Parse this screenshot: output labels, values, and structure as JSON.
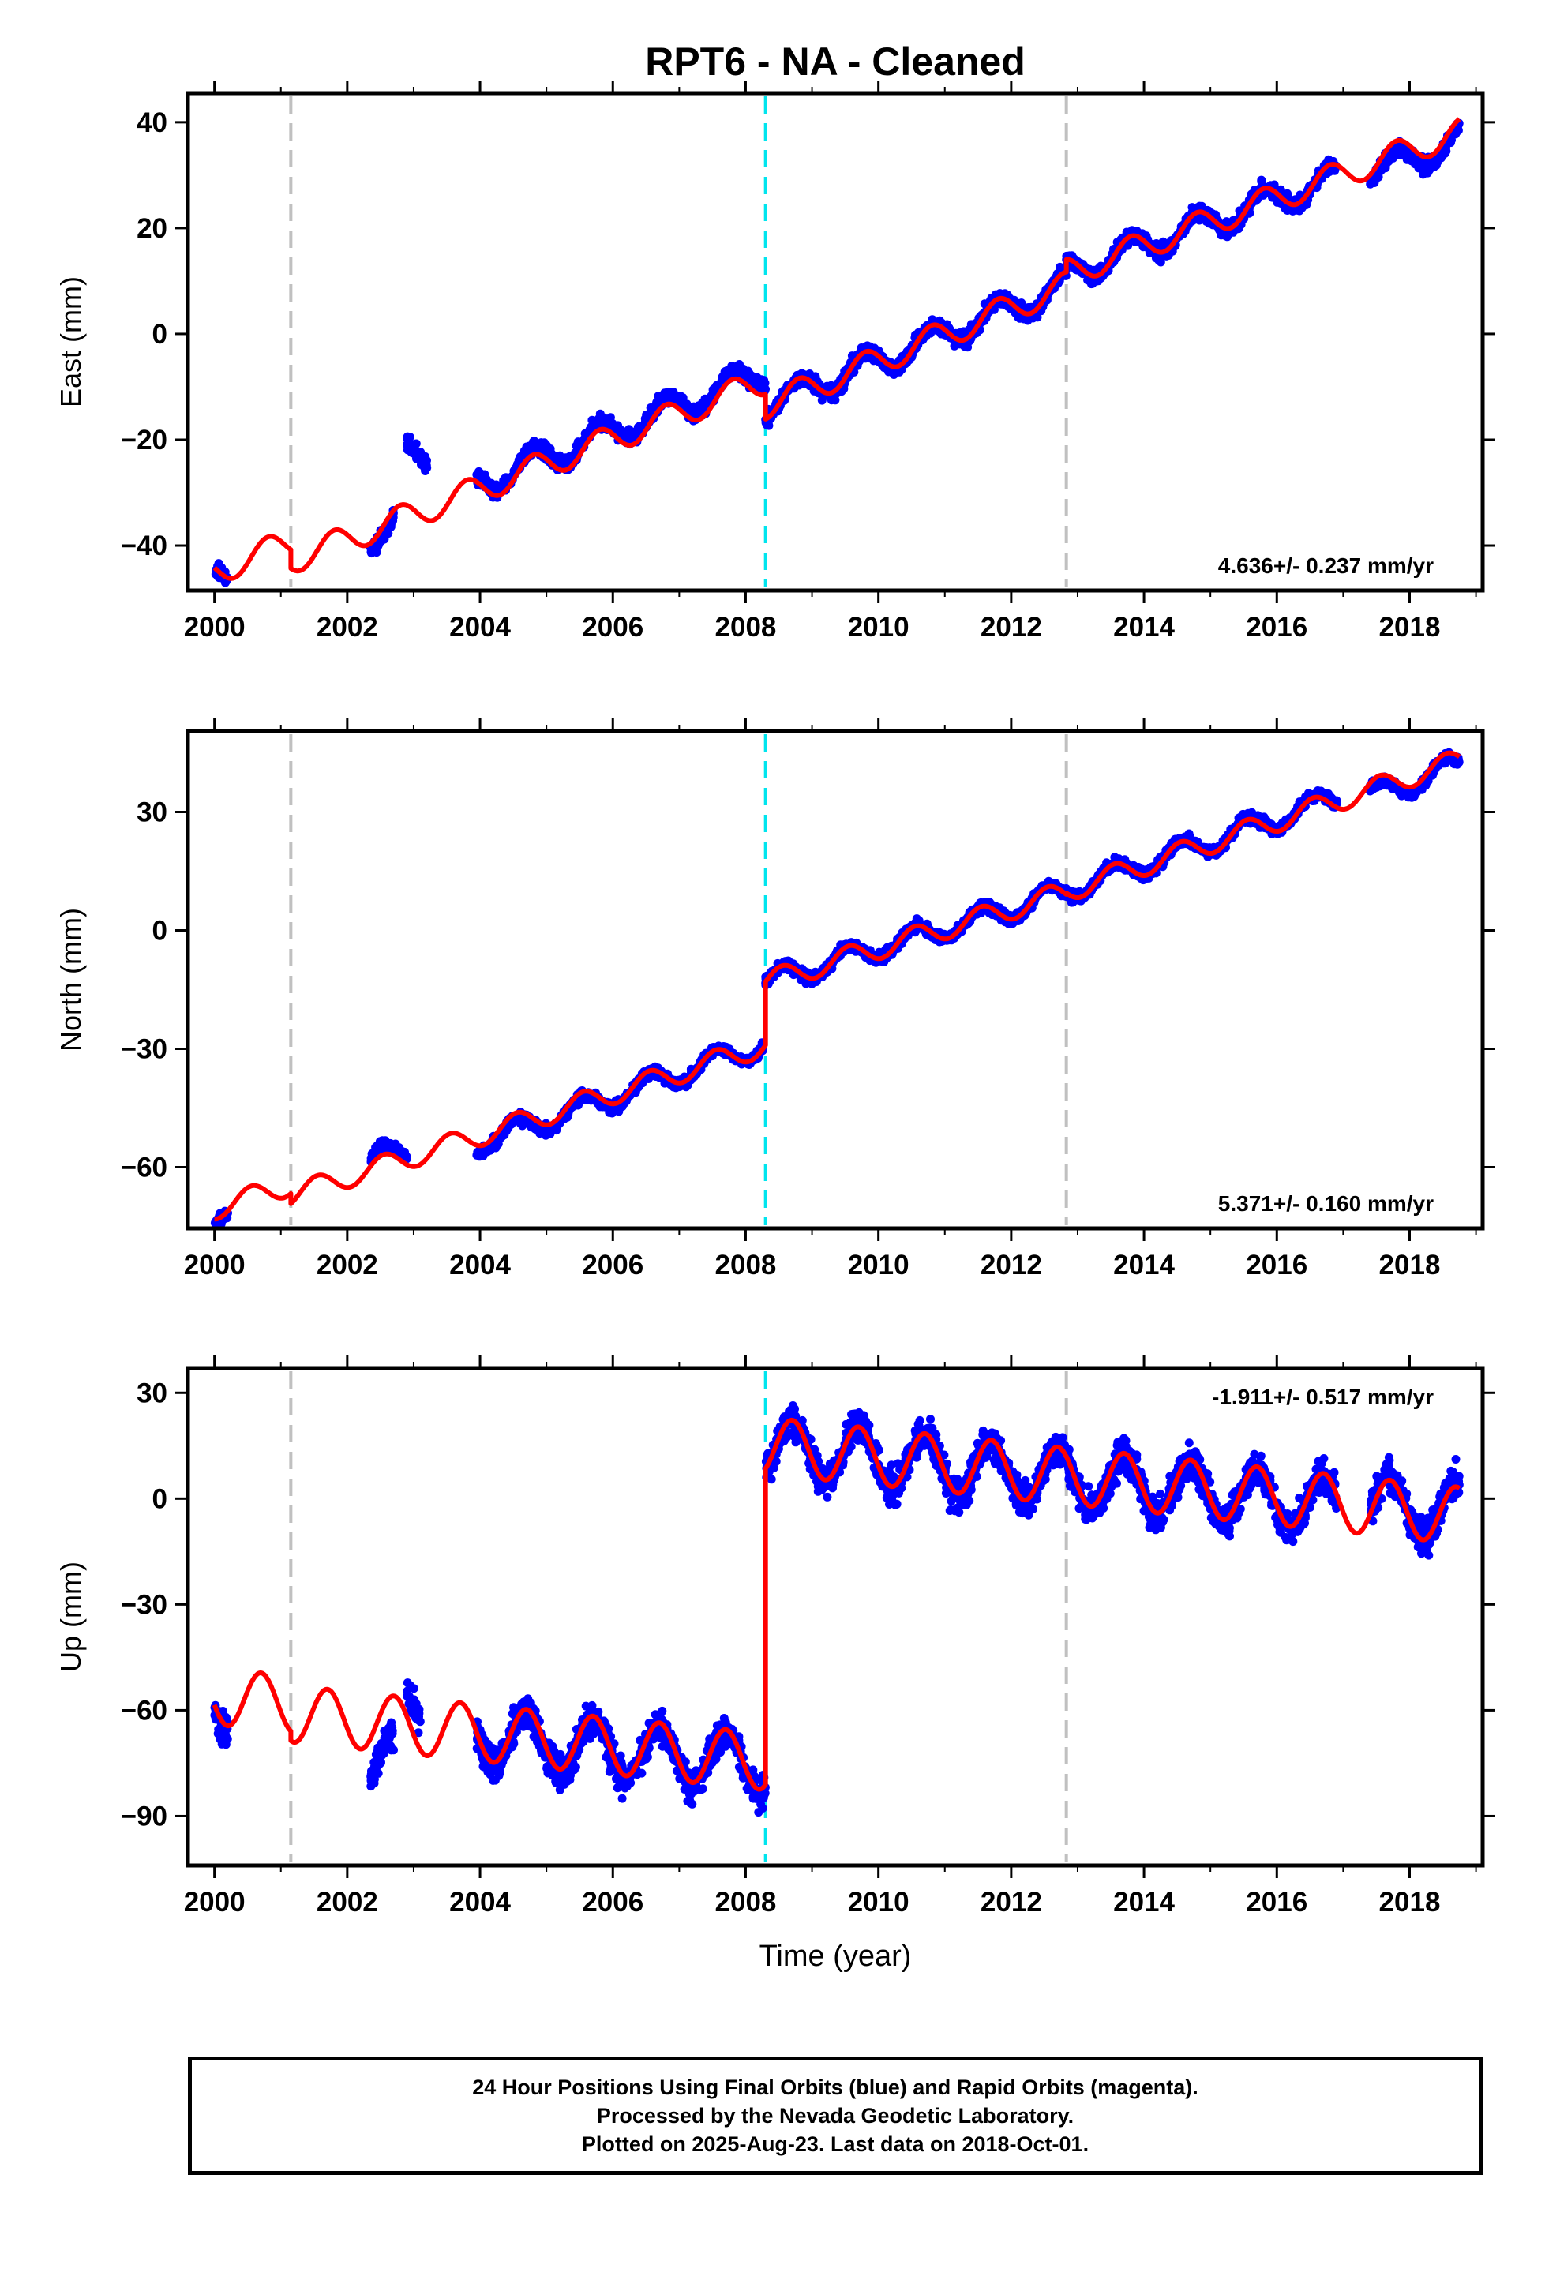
{
  "title": "RPT6  - NA - Cleaned",
  "xlabel": "Time (year)",
  "footer": {
    "line1": "24 Hour Positions Using Final Orbits (blue) and Rapid Orbits (magenta).",
    "line2": "Processed by the Nevada Geodetic Laboratory.",
    "line3": "Plotted on 2025-Aug-23. Last data on 2018-Oct-01."
  },
  "colors": {
    "data": "#0000ff",
    "model": "#ff0000",
    "offset_equipment": "#c0c0c0",
    "offset_earthquake": "#00e5ee"
  },
  "chart_data": [
    {
      "type": "scatter",
      "component": "east",
      "ylabel": "East (mm)",
      "rate_label": "4.636+/- 0.237 mm/yr",
      "rate_position": "bottom-right",
      "xlim": [
        1999.6,
        2019.1
      ],
      "ylim": [
        -48.5,
        45.5
      ],
      "xticks": [
        "2000",
        "2002",
        "2004",
        "2006",
        "2008",
        "2010",
        "2012",
        "2014",
        "2016",
        "2018"
      ],
      "yticks": [
        "40",
        "20",
        "0",
        "-20",
        "-40"
      ],
      "ytick_values": [
        40,
        20,
        0,
        -20,
        -40
      ],
      "grid": false,
      "vlines": [
        {
          "x": 2001.15,
          "kind": "equipment"
        },
        {
          "x": 2008.3,
          "kind": "earthquake"
        },
        {
          "x": 2012.83,
          "kind": "equipment"
        }
      ],
      "segments": [
        {
          "start": 2000.0,
          "end": 2000.2,
          "y0": -45.0,
          "rate": 5.0
        },
        {
          "start": 2002.35,
          "end": 2002.7,
          "y0": -38.5,
          "rate": 4.6
        },
        {
          "start": 2002.9,
          "end": 2003.2,
          "y0": -22.5,
          "rate": 0.0
        },
        {
          "start": 2003.95,
          "end": 2008.3,
          "y0": -28.5,
          "rate": 4.9
        },
        {
          "start": 2008.3,
          "end": 2012.83,
          "y0": -13.5,
          "rate": 5.0
        },
        {
          "start": 2012.83,
          "end": 2016.9,
          "y0": 11.5,
          "rate": 4.45
        },
        {
          "start": 2017.4,
          "end": 2018.75,
          "y0": 30.5,
          "rate": 4.5
        }
      ],
      "model_segments": [
        {
          "start": 2000.0,
          "end": 2001.15,
          "y0": -45.0,
          "rate": 5.0
        },
        {
          "start": 2001.15,
          "end": 2008.3,
          "y0": -42.8,
          "rate": 4.75
        },
        {
          "start": 2008.3,
          "end": 2012.83,
          "y0": -13.5,
          "rate": 5.0
        },
        {
          "start": 2012.83,
          "end": 2018.75,
          "y0": 11.5,
          "rate": 4.5
        }
      ],
      "seasonal_amplitude": 2.6,
      "seasonal_phase": 0.55
    },
    {
      "type": "scatter",
      "component": "north",
      "ylabel": "North (mm)",
      "rate_label": "5.371+/- 0.160 mm/yr",
      "rate_position": "bottom-right",
      "xlim": [
        1999.6,
        2019.1
      ],
      "ylim": [
        -75.5,
        50.5
      ],
      "xticks": [
        "2000",
        "2002",
        "2004",
        "2006",
        "2008",
        "2010",
        "2012",
        "2014",
        "2016",
        "2018"
      ],
      "yticks": [
        "30",
        "0",
        "-30",
        "-60"
      ],
      "ytick_values": [
        30,
        0,
        -30,
        -60
      ],
      "grid": false,
      "vlines": [
        {
          "x": 2001.15,
          "kind": "equipment"
        },
        {
          "x": 2008.3,
          "kind": "earthquake"
        },
        {
          "x": 2012.83,
          "kind": "equipment"
        }
      ],
      "segments": [
        {
          "start": 2000.0,
          "end": 2000.2,
          "y0": -71.0,
          "rate": 5.0
        },
        {
          "start": 2002.35,
          "end": 2002.9,
          "y0": -58.5,
          "rate": 5.0
        },
        {
          "start": 2003.95,
          "end": 2008.3,
          "y0": -54.0,
          "rate": 5.8
        },
        {
          "start": 2008.3,
          "end": 2012.83,
          "y0": -13.0,
          "rate": 5.0
        },
        {
          "start": 2012.83,
          "end": 2016.9,
          "y0": 10.0,
          "rate": 5.8
        },
        {
          "start": 2017.4,
          "end": 2018.75,
          "y0": 34.0,
          "rate": 6.0
        }
      ],
      "model_segments": [
        {
          "start": 2000.0,
          "end": 2001.15,
          "y0": -70.5,
          "rate": 5.3
        },
        {
          "start": 2001.15,
          "end": 2008.3,
          "y0": -67.0,
          "rate": 5.3
        },
        {
          "start": 2008.3,
          "end": 2012.83,
          "y0": -13.0,
          "rate": 5.0
        },
        {
          "start": 2012.83,
          "end": 2018.75,
          "y0": 10.0,
          "rate": 5.6
        }
      ],
      "seasonal_amplitude": 2.8,
      "seasonal_phase": 0.3
    },
    {
      "type": "scatter",
      "component": "up",
      "ylabel": "Up (mm)",
      "rate_label": "-1.911+/- 0.517 mm/yr",
      "rate_position": "top-right",
      "xlim": [
        1999.6,
        2019.1
      ],
      "ylim": [
        -104.0,
        37.0
      ],
      "xticks": [
        "2000",
        "2002",
        "2004",
        "2006",
        "2008",
        "2010",
        "2012",
        "2014",
        "2016",
        "2018"
      ],
      "yticks": [
        "30",
        "0",
        "-30",
        "-60",
        "-90"
      ],
      "ytick_values": [
        30,
        0,
        -30,
        -60,
        -90
      ],
      "grid": false,
      "vlines": [
        {
          "x": 2001.15,
          "kind": "equipment"
        },
        {
          "x": 2008.3,
          "kind": "earthquake"
        },
        {
          "x": 2012.83,
          "kind": "equipment"
        }
      ],
      "segments": [
        {
          "start": 2000.0,
          "end": 2000.2,
          "y0": -58.0,
          "rate": 0.0
        },
        {
          "start": 2002.35,
          "end": 2002.7,
          "y0": -75.0,
          "rate": 0.0
        },
        {
          "start": 2002.9,
          "end": 2003.1,
          "y0": -56.0,
          "rate": 0.0
        },
        {
          "start": 2003.95,
          "end": 2008.3,
          "y0": -67.0,
          "rate": -2.0
        },
        {
          "start": 2008.3,
          "end": 2012.83,
          "y0": 15.0,
          "rate": -2.0
        },
        {
          "start": 2012.83,
          "end": 2016.9,
          "y0": 6.0,
          "rate": -2.0
        },
        {
          "start": 2017.4,
          "end": 2018.75,
          "y0": -1.0,
          "rate": -2.0
        }
      ],
      "model_segments": [
        {
          "start": 2000.0,
          "end": 2001.15,
          "y0": -56.0,
          "rate": -2.0
        },
        {
          "start": 2001.15,
          "end": 2008.3,
          "y0": -61.0,
          "rate": -1.9
        },
        {
          "start": 2008.3,
          "end": 2012.83,
          "y0": 15.0,
          "rate": -1.9
        },
        {
          "start": 2012.83,
          "end": 2018.75,
          "y0": 6.5,
          "rate": -1.9
        }
      ],
      "seasonal_amplitude": 8.0,
      "seasonal_phase": 0.45
    }
  ]
}
